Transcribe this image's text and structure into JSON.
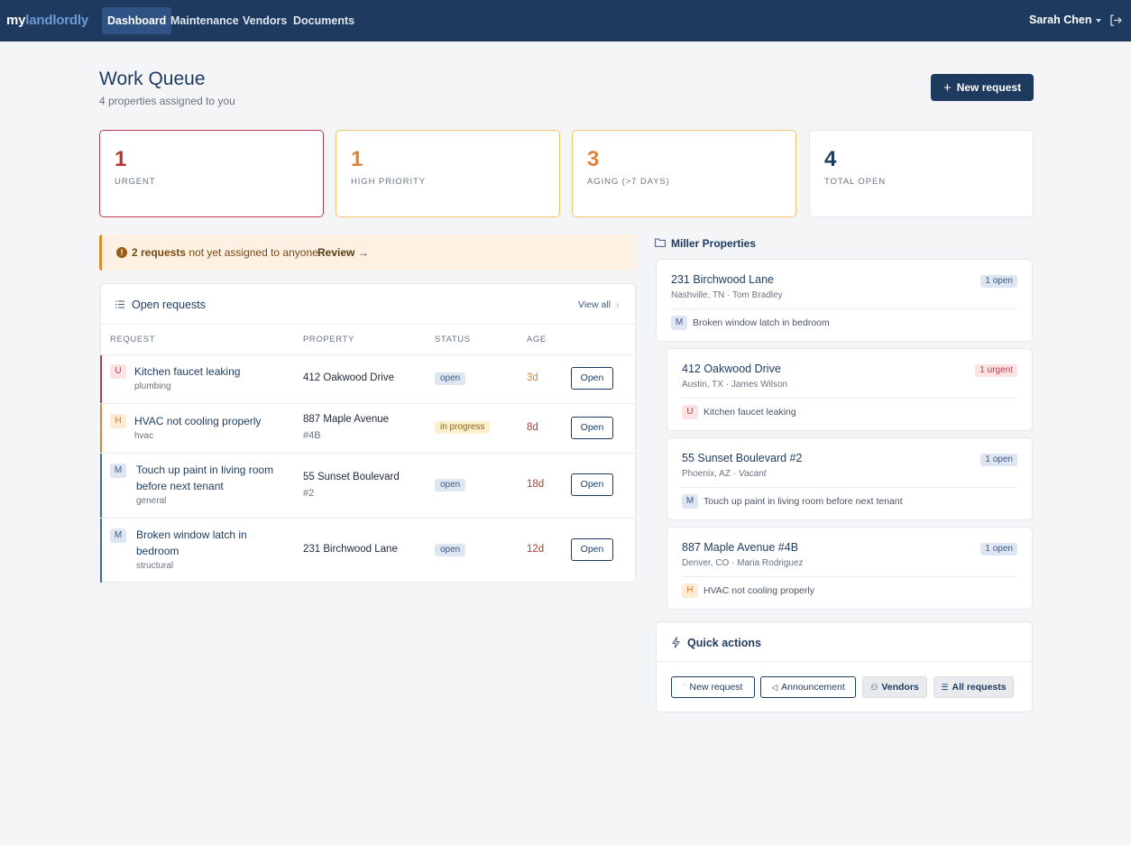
{
  "brand": {
    "part1": "my",
    "part2": "landlordly"
  },
  "nav": {
    "links": [
      "Dashboard",
      "Maintenance",
      "Vendors",
      "Documents"
    ],
    "user": "Sarah Chen"
  },
  "header": {
    "title": "Work Queue",
    "subtitle": "4 properties assigned to you",
    "new_request": "New request"
  },
  "stats": [
    {
      "value": "1",
      "label": "URGENT",
      "color": "#b23a2e"
    },
    {
      "value": "1",
      "label": "HIGH PRIORITY",
      "color": "#e0823a"
    },
    {
      "value": "3",
      "label": "AGING (>7 DAYS)",
      "color": "#e0823a"
    },
    {
      "value": "4",
      "label": "TOTAL OPEN",
      "color": "#1e3a5f"
    }
  ],
  "alert": {
    "count": "2 requests",
    "text": " not yet assigned to anyone.",
    "action": "Review →"
  },
  "open_requests": {
    "title": "Open requests",
    "view_all": "View all",
    "columns": [
      "REQUEST",
      "PROPERTY",
      "STATUS",
      "AGE"
    ],
    "rows": [
      {
        "badge": "U",
        "title_l1": "Kitchen faucet leaking",
        "title_l2": "",
        "category": "plumbing",
        "property": "412 Oakwood Drive",
        "unit": "",
        "status": "open",
        "age": "3d",
        "action": "Open"
      },
      {
        "badge": "H",
        "title_l1": "HVAC not cooling properly",
        "title_l2": "",
        "category": "hvac",
        "property": "887 Maple Avenue",
        "unit": "#4B",
        "status": "in progress",
        "age": "8d",
        "action": "Open"
      },
      {
        "badge": "M",
        "title_l1": "Touch up paint in living room",
        "title_l2": "before next tenant",
        "category": "general",
        "property": "55 Sunset Boulevard",
        "unit": "#2",
        "status": "open",
        "age": "18d",
        "action": "Open"
      },
      {
        "badge": "M",
        "title_l1": "Broken window latch in",
        "title_l2": "bedroom",
        "category": "structural",
        "property": "231 Birchwood Lane",
        "unit": "",
        "status": "open",
        "age": "12d",
        "action": "Open"
      }
    ]
  },
  "properties": {
    "group": "Miller Properties",
    "items": [
      {
        "address": "231 Birchwood Lane",
        "city": "Nashville, TN",
        "tenant": "Tom Bradley",
        "tag": "1 open",
        "badge": "M",
        "request": "Broken window latch in bedroom"
      },
      {
        "address": "412 Oakwood Drive",
        "city": "Austin, TX",
        "tenant": "James Wilson",
        "tag": "1 urgent",
        "badge": "U",
        "request": "Kitchen faucet leaking"
      },
      {
        "address": "55 Sunset Boulevard #2",
        "city": "Phoenix, AZ",
        "tenant": "Vacant",
        "tag": "1 open",
        "badge": "M",
        "request": "Touch up paint in living room before next tenant"
      },
      {
        "address": "887 Maple Avenue #4B",
        "city": "Denver, CO",
        "tenant": "Maria Rodriguez",
        "tag": "1 open",
        "badge": "H",
        "request": "HVAC not cooling properly"
      }
    ],
    "separator": " · "
  },
  "quick_actions": {
    "title": "Quick actions",
    "buttons": [
      "New request",
      "Announcement",
      "Vendors",
      "All requests"
    ]
  }
}
